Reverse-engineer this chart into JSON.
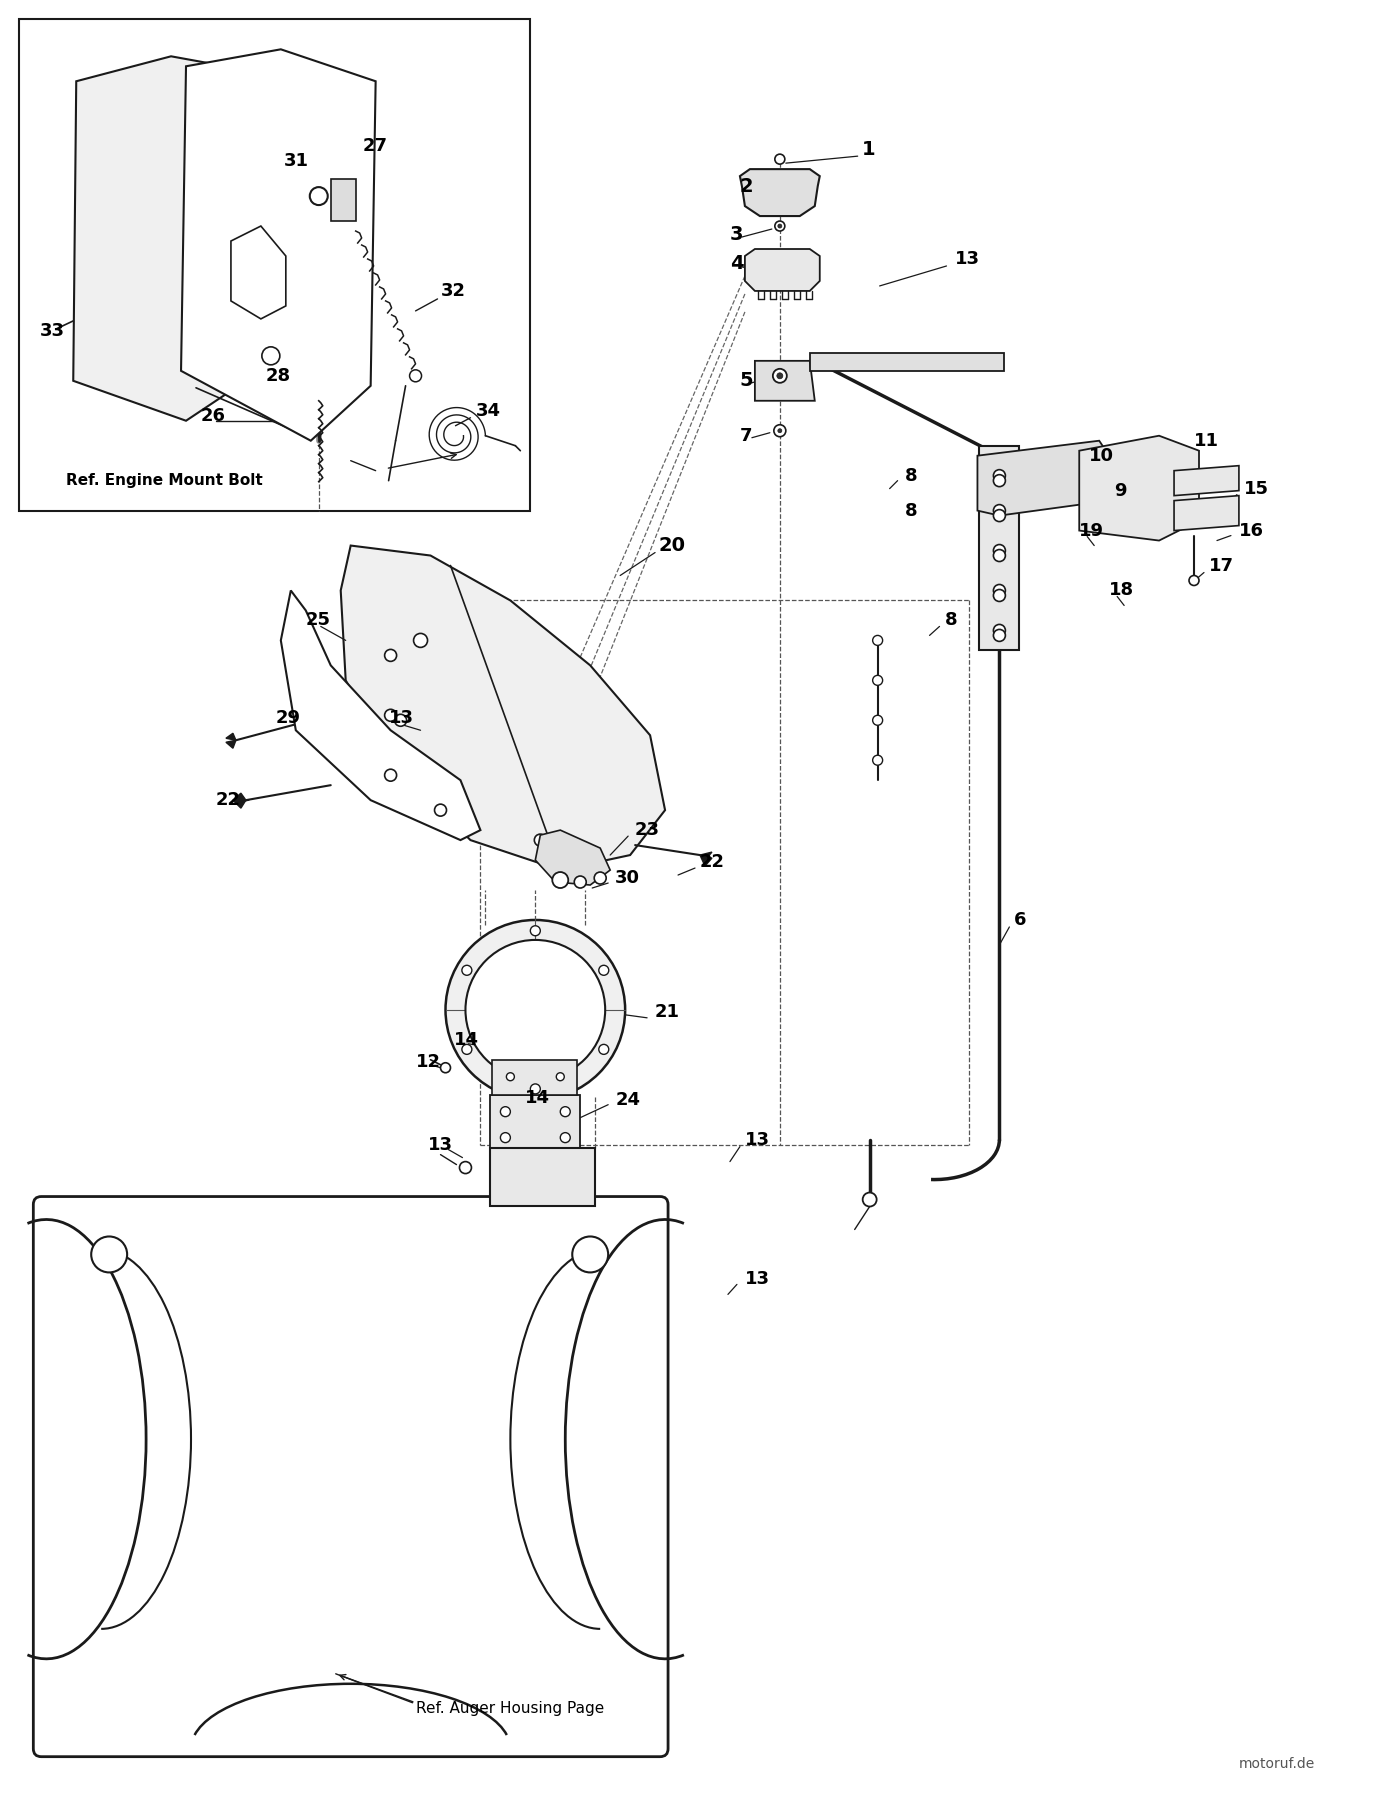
{
  "bg_color": "#ffffff",
  "line_color": "#1a1a1a",
  "dpi": 100,
  "fig_width": 13.95,
  "fig_height": 18.0,
  "watermark": "motoruf.de",
  "ref_engine_label": "Ref. Engine Mount Bolt",
  "ref_auger_label": "Ref. Auger Housing Page"
}
